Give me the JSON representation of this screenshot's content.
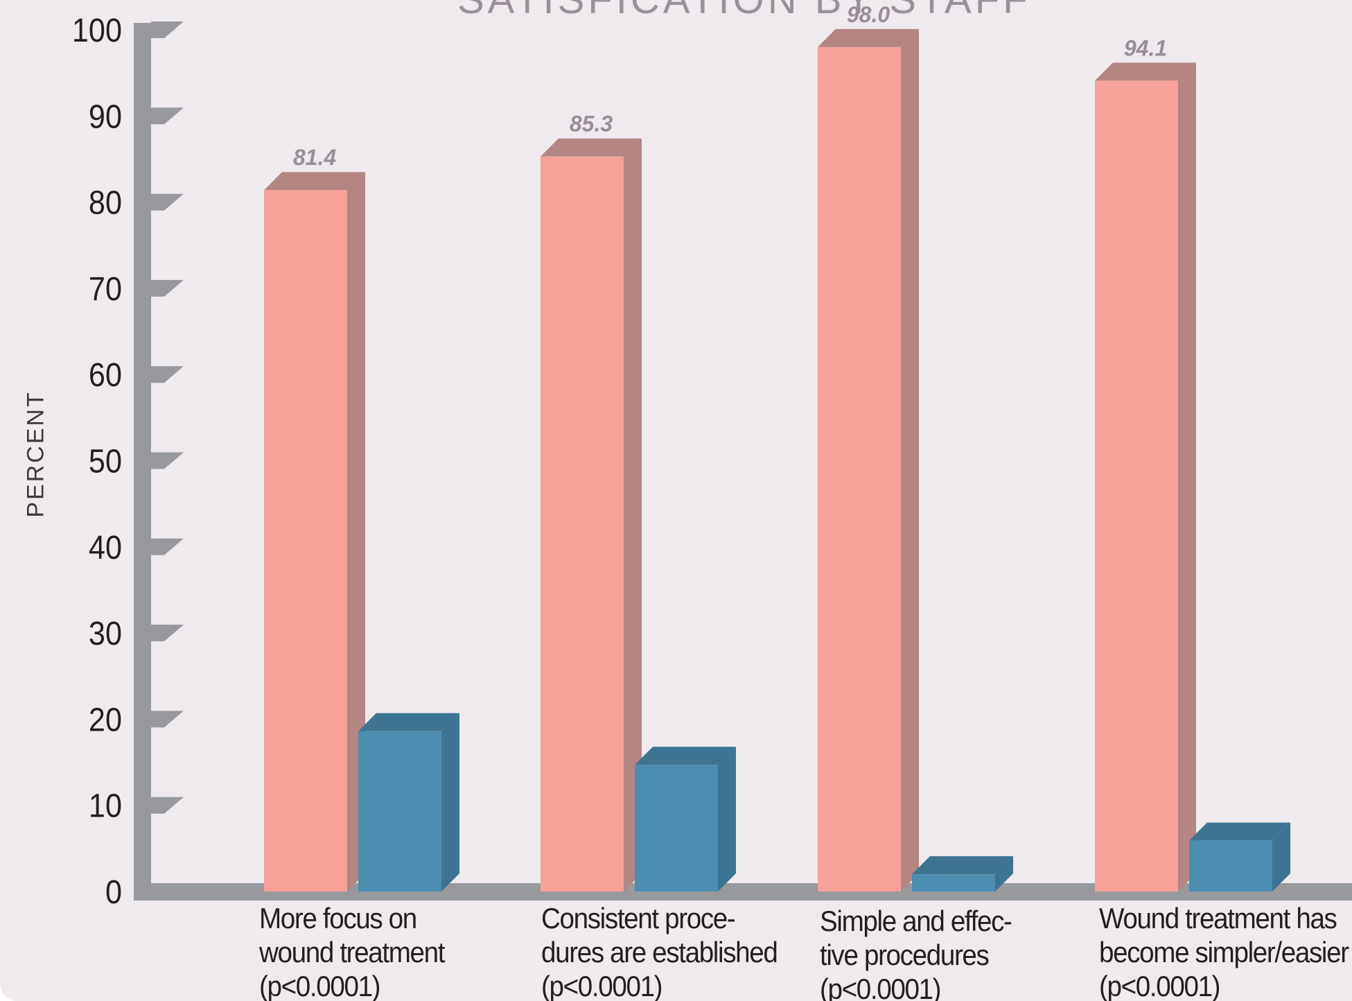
{
  "chart_data": {
    "type": "bar",
    "title": "SATISFICATION BY STAFF",
    "ylabel": "PERCENT",
    "xlabel": "",
    "ylim": [
      0,
      100
    ],
    "yticks": [
      0,
      10,
      20,
      30,
      40,
      50,
      60,
      70,
      80,
      90,
      100
    ],
    "grid": false,
    "legend": "none",
    "categories": [
      [
        "More focus on",
        "wound treatment",
        "(p<0.0001)"
      ],
      [
        "Consistent proce-",
        "dures are established",
        "(p<0.0001)"
      ],
      [
        "Simple and effec-",
        "tive procedures",
        "(p<0.0001)"
      ],
      [
        "Wound treatment has",
        "become simpler/easier",
        "(p<0.0001)"
      ]
    ],
    "series": [
      {
        "color": "#f6a29b",
        "side_color": "#b38583",
        "values": [
          81.4,
          85.3,
          98.0,
          94.1
        ],
        "labels": [
          "81.4",
          "85.3",
          "98.0",
          "94.1"
        ]
      },
      {
        "color": "#4c8db0",
        "side_color": "#3d7492",
        "values": [
          18.6,
          14.7,
          2.0,
          5.9
        ]
      }
    ]
  },
  "colors": {
    "axis": "#97999c",
    "background": "#efeaee"
  }
}
